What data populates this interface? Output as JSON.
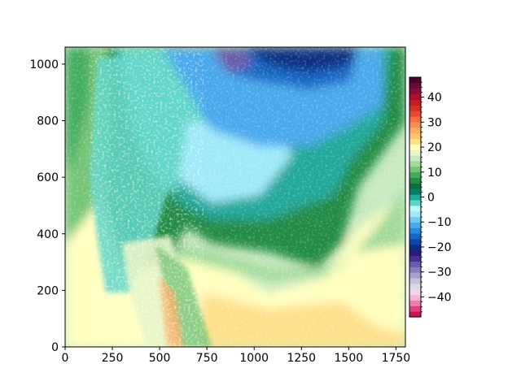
{
  "chart_data": {
    "type": "heatmap",
    "title": "",
    "xlabel": "",
    "ylabel": "",
    "xlim": [
      0,
      1800
    ],
    "ylim": [
      0,
      1060
    ],
    "x_ticks": [
      "0",
      "250",
      "500",
      "750",
      "1000",
      "1250",
      "1500",
      "1750"
    ],
    "y_ticks": [
      "0",
      "200",
      "400",
      "600",
      "800",
      "1000"
    ],
    "colorbar": {
      "range": [
        -48,
        48
      ],
      "tick_labels": [
        "40",
        "30",
        "20",
        "10",
        "0",
        "−10",
        "−20",
        "−30",
        "−40"
      ],
      "tick_values": [
        40,
        30,
        20,
        10,
        0,
        -10,
        -20,
        -30,
        -40
      ],
      "colors_low_to_high": [
        "#c2185b",
        "#e0407e",
        "#f27bb3",
        "#f7b4d6",
        "#f5d5e6",
        "#ddd8e8",
        "#c9c1dc",
        "#aaa2cb",
        "#8a7fbd",
        "#6a5aab",
        "#4b2f96",
        "#2b1a78",
        "#0b2e84",
        "#0a46a8",
        "#1568c4",
        "#2a8adc",
        "#4aa8ec",
        "#74c8f4",
        "#9feafa",
        "#c0f7ff",
        "#5fd6c8",
        "#20a89a",
        "#007f6c",
        "#0e6e3e",
        "#238b45",
        "#41ab5d",
        "#74c476",
        "#a1d99b",
        "#c7e9c0",
        "#e5f5c6",
        "#ffffbf",
        "#fee08b",
        "#fdc86a",
        "#fdae61",
        "#f98e52",
        "#f46d43",
        "#e34a33",
        "#d7301f",
        "#c51b26",
        "#b30d2e",
        "#8a0a3c",
        "#6a0a3a",
        "#4a0030"
      ]
    },
    "field_description_colors": {
      "far_west": "#c7e9c0",
      "south": "#ffffbf",
      "central": "#238b45",
      "north": "#4aa8ec",
      "far_north": "#0b2e84"
    }
  }
}
